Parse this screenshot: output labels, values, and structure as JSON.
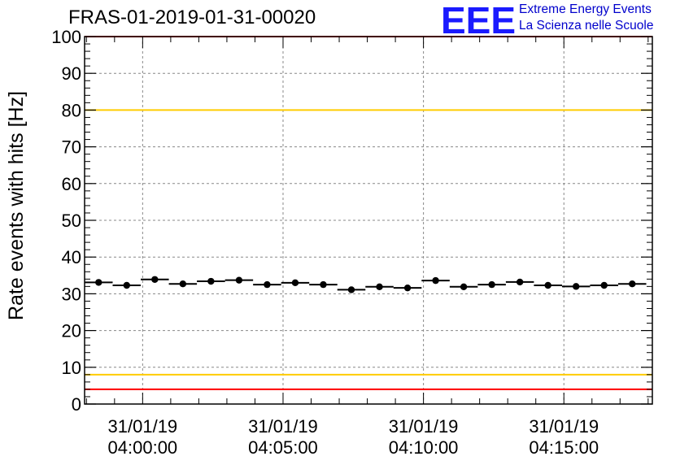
{
  "header": {
    "title": "FRAS-01-2019-01-31-00020",
    "logo_text": "EEE",
    "logo_line1": "Extreme Energy Events",
    "logo_line2": "La Scienza nelle Scuole"
  },
  "colors": {
    "points": "#000000",
    "limit_high": "#ff0000",
    "limit_mid": "#ffcc00",
    "grid": "#888888",
    "logo": "#1a1aff"
  },
  "chart_data": {
    "type": "scatter",
    "title": "FRAS-01-2019-01-31-00020",
    "ylabel": "Rate events with hits [Hz]",
    "xlabel": "",
    "ylim": [
      0,
      100
    ],
    "yticks": [
      0,
      10,
      20,
      30,
      40,
      50,
      60,
      70,
      80,
      90,
      100
    ],
    "xticks": [
      {
        "t": "2019-01-31 04:00:00",
        "label_date": "31/01/19",
        "label_time": "04:00:00"
      },
      {
        "t": "2019-01-31 04:05:00",
        "label_date": "31/01/19",
        "label_time": "04:05:00"
      },
      {
        "t": "2019-01-31 04:10:00",
        "label_date": "31/01/19",
        "label_time": "04:10:00"
      },
      {
        "t": "2019-01-31 04:15:00",
        "label_date": "31/01/19",
        "label_time": "04:15:00"
      }
    ],
    "xlim": [
      "2019-01-31 03:57:56",
      "2019-01-31 04:18:09"
    ],
    "grid": true,
    "reference_lines": [
      {
        "y": 100,
        "color": "#ff0000"
      },
      {
        "y": 80,
        "color": "#ffcc00"
      },
      {
        "y": 8,
        "color": "#ffcc00"
      },
      {
        "y": 4,
        "color": "#ff0000"
      }
    ],
    "series": [
      {
        "points": [
          {
            "x": "2019-01-31 03:58:26",
            "y": 33.1,
            "bin": [
              29,
              30
            ]
          },
          {
            "x": "2019-01-31 03:59:26",
            "y": 32.3,
            "bin": [
              30,
              30
            ]
          },
          {
            "x": "2019-01-31 04:00:26",
            "y": 33.9,
            "bin": [
              30,
              30
            ]
          },
          {
            "x": "2019-01-31 04:01:26",
            "y": 32.7,
            "bin": [
              30,
              30
            ]
          },
          {
            "x": "2019-01-31 04:02:26",
            "y": 33.4,
            "bin": [
              30,
              30
            ]
          },
          {
            "x": "2019-01-31 04:03:26",
            "y": 33.7,
            "bin": [
              30,
              30
            ]
          },
          {
            "x": "2019-01-31 04:04:26",
            "y": 32.5,
            "bin": [
              30,
              30
            ]
          },
          {
            "x": "2019-01-31 04:05:26",
            "y": 33.0,
            "bin": [
              30,
              30
            ]
          },
          {
            "x": "2019-01-31 04:06:26",
            "y": 32.5,
            "bin": [
              30,
              30
            ]
          },
          {
            "x": "2019-01-31 04:07:26",
            "y": 31.1,
            "bin": [
              30,
              30
            ]
          },
          {
            "x": "2019-01-31 04:08:26",
            "y": 31.9,
            "bin": [
              30,
              30
            ]
          },
          {
            "x": "2019-01-31 04:09:26",
            "y": 31.6,
            "bin": [
              30,
              30
            ]
          },
          {
            "x": "2019-01-31 04:10:26",
            "y": 33.6,
            "bin": [
              30,
              30
            ]
          },
          {
            "x": "2019-01-31 04:11:26",
            "y": 31.9,
            "bin": [
              30,
              30
            ]
          },
          {
            "x": "2019-01-31 04:12:26",
            "y": 32.5,
            "bin": [
              30,
              30
            ]
          },
          {
            "x": "2019-01-31 04:13:26",
            "y": 33.2,
            "bin": [
              30,
              30
            ]
          },
          {
            "x": "2019-01-31 04:14:26",
            "y": 32.3,
            "bin": [
              30,
              30
            ]
          },
          {
            "x": "2019-01-31 04:15:26",
            "y": 32.0,
            "bin": [
              30,
              30
            ]
          },
          {
            "x": "2019-01-31 04:16:26",
            "y": 32.3,
            "bin": [
              30,
              30
            ]
          },
          {
            "x": "2019-01-31 04:17:26",
            "y": 32.7,
            "bin": [
              30,
              30
            ]
          }
        ]
      }
    ]
  }
}
